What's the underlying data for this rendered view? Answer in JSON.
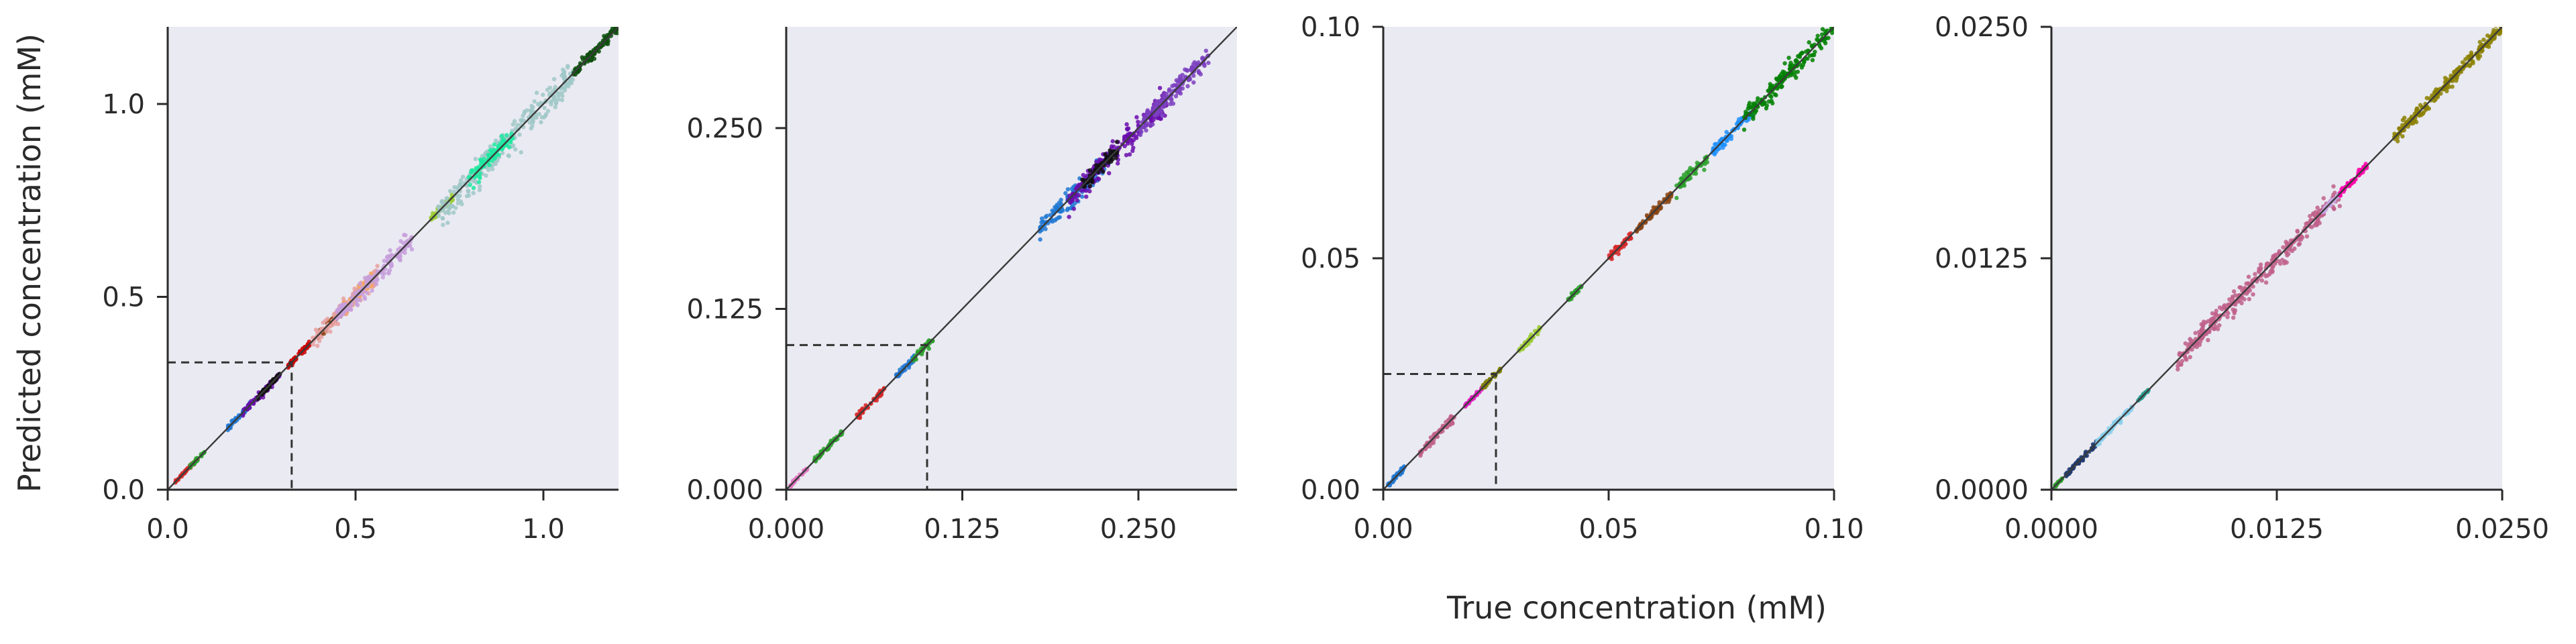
{
  "figure": {
    "xlabel": "True concentration (mM)",
    "ylabel": "Predicted concentration (mM)"
  },
  "colors": {
    "panel_background": "#eaeaf2",
    "axis": "#2a2a2a",
    "identity_line": "#3b3b3b",
    "reference_line": "#333333"
  },
  "chart_data": [
    {
      "type": "scatter",
      "xlim": [
        0,
        1.2
      ],
      "ylim": [
        0,
        1.2
      ],
      "xticks": [
        0.0,
        0.5,
        1.0
      ],
      "yticks": [
        0.0,
        0.5,
        1.0
      ],
      "xtick_labels": [
        "0.0",
        "0.5",
        "1.0"
      ],
      "ytick_labels": [
        "0.0",
        "0.5",
        "1.0"
      ],
      "identity_line": true,
      "reference_level": 0.33,
      "clusters": [
        {
          "color": "#d62728",
          "x": [
            0.02,
            0.08
          ],
          "spread": 0.004
        },
        {
          "color": "#2ca02c",
          "x": [
            0.06,
            0.1
          ],
          "spread": 0.004
        },
        {
          "color": "#1f78d4",
          "x": [
            0.16,
            0.22
          ],
          "spread": 0.006
        },
        {
          "color": "#6a0dad",
          "x": [
            0.2,
            0.3
          ],
          "spread": 0.008
        },
        {
          "color": "#111111",
          "x": [
            0.24,
            0.3
          ],
          "spread": 0.005
        },
        {
          "color": "#cc0000",
          "x": [
            0.32,
            0.38
          ],
          "spread": 0.008
        },
        {
          "color": "#8b4513",
          "x": [
            0.4,
            0.46
          ],
          "spread": 0.01
        },
        {
          "color": "#e8a0a0",
          "x": [
            0.38,
            0.56
          ],
          "spread": 0.02
        },
        {
          "color": "#f4a460",
          "x": [
            0.45,
            0.55
          ],
          "spread": 0.015
        },
        {
          "color": "#c79fdc",
          "x": [
            0.45,
            0.65
          ],
          "spread": 0.02
        },
        {
          "color": "#9acd32",
          "x": [
            0.7,
            0.76
          ],
          "spread": 0.01
        },
        {
          "color": "#a0c8c8",
          "x": [
            0.72,
            1.08
          ],
          "spread": 0.035
        },
        {
          "color": "#1de9a0",
          "x": [
            0.8,
            0.92
          ],
          "spread": 0.02
        },
        {
          "color": "#0a4d0a",
          "x": [
            1.08,
            1.2
          ],
          "spread": 0.012
        }
      ]
    },
    {
      "type": "scatter",
      "xlim": [
        0,
        0.32
      ],
      "ylim": [
        0,
        0.32
      ],
      "xticks": [
        0.0,
        0.125,
        0.25
      ],
      "yticks": [
        0.0,
        0.125,
        0.25
      ],
      "xtick_labels": [
        "0.000",
        "0.125",
        "0.250"
      ],
      "ytick_labels": [
        "0.000",
        "0.125",
        "0.250"
      ],
      "identity_line": true,
      "reference_level": 0.1,
      "clusters": [
        {
          "color": "#e377c2",
          "x": [
            0.003,
            0.015
          ],
          "spread": 0.0012
        },
        {
          "color": "#2ca02c",
          "x": [
            0.02,
            0.04
          ],
          "spread": 0.0015
        },
        {
          "color": "#d62728",
          "x": [
            0.05,
            0.07
          ],
          "spread": 0.002
        },
        {
          "color": "#1f78d4",
          "x": [
            0.078,
            0.092
          ],
          "spread": 0.002
        },
        {
          "color": "#2ca02c",
          "x": [
            0.09,
            0.104
          ],
          "spread": 0.0025
        },
        {
          "color": "#1f78d4",
          "x": [
            0.18,
            0.23
          ],
          "spread": 0.006
        },
        {
          "color": "#6a0dad",
          "x": [
            0.2,
            0.27
          ],
          "spread": 0.008
        },
        {
          "color": "#111111",
          "x": [
            0.21,
            0.235
          ],
          "spread": 0.004
        },
        {
          "color": "#7b3fbf",
          "x": [
            0.25,
            0.3
          ],
          "spread": 0.006
        }
      ]
    },
    {
      "type": "scatter",
      "xlim": [
        0,
        0.1
      ],
      "ylim": [
        0,
        0.1
      ],
      "xticks": [
        0.0,
        0.05,
        0.1
      ],
      "yticks": [
        0.0,
        0.05,
        0.1
      ],
      "xtick_labels": [
        "0.00",
        "0.05",
        "0.10"
      ],
      "ytick_labels": [
        "0.00",
        "0.05",
        "0.10"
      ],
      "identity_line": true,
      "reference_level": 0.025,
      "clusters": [
        {
          "color": "#1f78d4",
          "x": [
            0.001,
            0.005
          ],
          "spread": 0.0004
        },
        {
          "color": "#c0608a",
          "x": [
            0.008,
            0.016
          ],
          "spread": 0.0008
        },
        {
          "color": "#e020c0",
          "x": [
            0.018,
            0.022
          ],
          "spread": 0.0004
        },
        {
          "color": "#808000",
          "x": [
            0.022,
            0.026
          ],
          "spread": 0.0005
        },
        {
          "color": "#9acd32",
          "x": [
            0.03,
            0.035
          ],
          "spread": 0.0006
        },
        {
          "color": "#2ca02c",
          "x": [
            0.041,
            0.044
          ],
          "spread": 0.0004
        },
        {
          "color": "#d62728",
          "x": [
            0.05,
            0.055
          ],
          "spread": 0.0008
        },
        {
          "color": "#8b4513",
          "x": [
            0.056,
            0.064
          ],
          "spread": 0.0009
        },
        {
          "color": "#2ca02c",
          "x": [
            0.065,
            0.072
          ],
          "spread": 0.0012
        },
        {
          "color": "#1e90ff",
          "x": [
            0.073,
            0.082
          ],
          "spread": 0.001
        },
        {
          "color": "#008000",
          "x": [
            0.08,
            0.1
          ],
          "spread": 0.0018
        }
      ]
    },
    {
      "type": "scatter",
      "xlim": [
        0,
        0.025
      ],
      "ylim": [
        0,
        0.025
      ],
      "xticks": [
        0.0,
        0.0125,
        0.025
      ],
      "yticks": [
        0.0,
        0.0125,
        0.025
      ],
      "xtick_labels": [
        "0.0000",
        "0.0125",
        "0.0250"
      ],
      "ytick_labels": [
        "0.0000",
        "0.0125",
        "0.0250"
      ],
      "identity_line": true,
      "clusters": [
        {
          "color": "#2ca02c",
          "x": [
            0.0002,
            0.0006
          ],
          "spread": 5e-05
        },
        {
          "color": "#1f3a6e",
          "x": [
            0.0008,
            0.0025
          ],
          "spread": 0.00012
        },
        {
          "color": "#87ceeb",
          "x": [
            0.0025,
            0.0045
          ],
          "spread": 0.00015
        },
        {
          "color": "#2a9d8f",
          "x": [
            0.0048,
            0.0054
          ],
          "spread": 6e-05
        },
        {
          "color": "#c0608a",
          "x": [
            0.007,
            0.016
          ],
          "spread": 0.0005
        },
        {
          "color": "#c5a3e0",
          "x": [
            0.015,
            0.016
          ],
          "spread": 0.0001
        },
        {
          "color": "#ff00aa",
          "x": [
            0.016,
            0.0175
          ],
          "spread": 0.00015
        },
        {
          "color": "#8b8000",
          "x": [
            0.019,
            0.025
          ],
          "spread": 0.0003
        }
      ]
    }
  ]
}
